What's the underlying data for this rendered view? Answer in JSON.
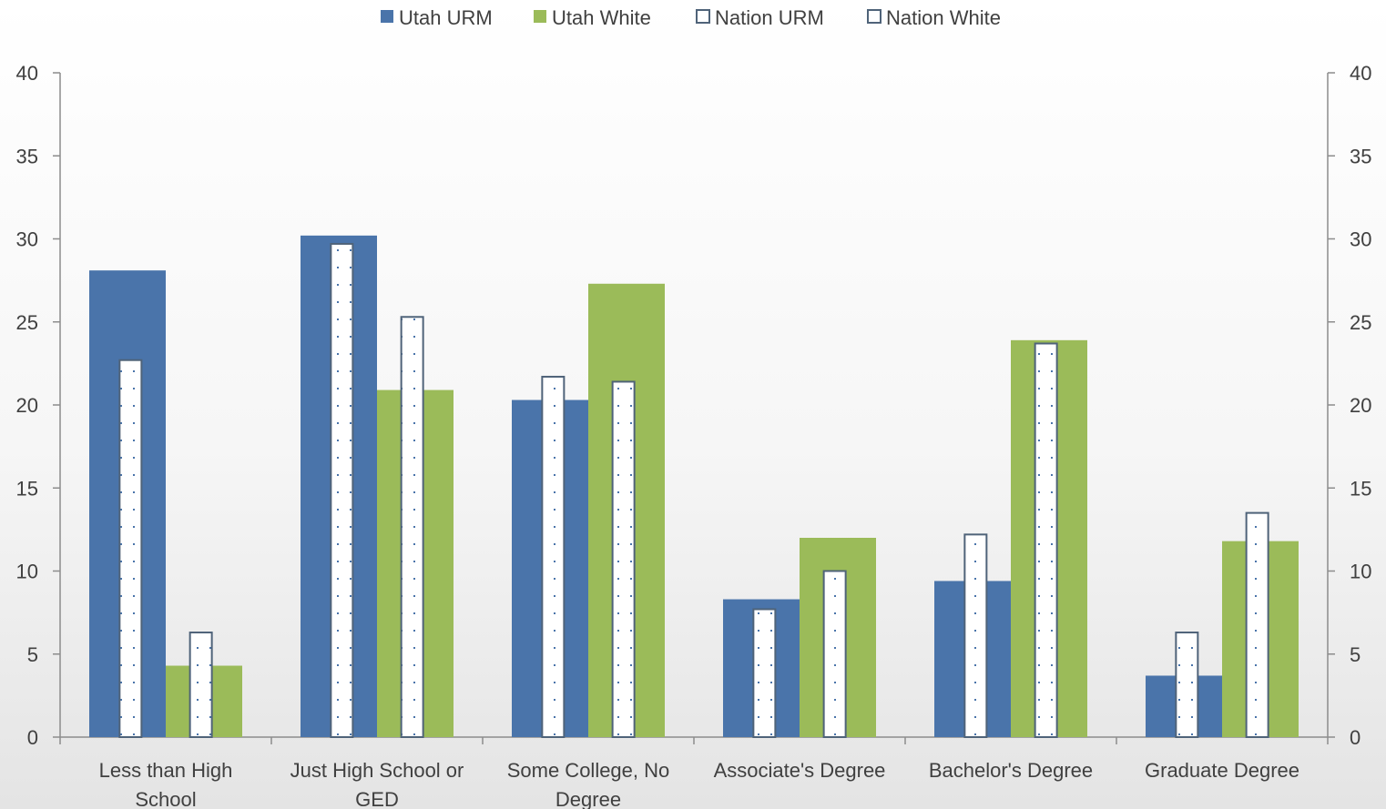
{
  "chart_data": {
    "type": "bar",
    "title": "",
    "xlabel": "",
    "ylabel": "",
    "ylim": [
      0,
      40
    ],
    "yticks": [
      0,
      5,
      10,
      15,
      20,
      25,
      30,
      35,
      40
    ],
    "secondary_y_axis": true,
    "legend_position": "top",
    "categories": [
      [
        "Less than High",
        "School"
      ],
      [
        "Just High School or",
        "GED"
      ],
      [
        "Some College,  No",
        "Degree"
      ],
      [
        "Associate's Degree"
      ],
      [
        "Bachelor's  Degree"
      ],
      [
        "Graduate Degree"
      ]
    ],
    "series": [
      {
        "name": "Utah URM",
        "values": [
          28.1,
          30.2,
          20.3,
          8.3,
          9.4,
          3.7
        ],
        "color": "#4a74aa",
        "style": "solid",
        "group": "utah"
      },
      {
        "name": "Utah White",
        "values": [
          4.3,
          20.9,
          27.3,
          12.0,
          23.9,
          11.8
        ],
        "color": "#9bbb59",
        "style": "solid",
        "group": "utah"
      },
      {
        "name": "Nation URM",
        "values": [
          22.7,
          29.7,
          21.7,
          7.7,
          12.2,
          6.3
        ],
        "color": "#ffffff",
        "border": "#4f6379",
        "dot": "#4a74aa",
        "style": "dotted",
        "group": "nation"
      },
      {
        "name": "Nation  White",
        "values": [
          6.3,
          25.3,
          21.4,
          10.0,
          23.7,
          13.5
        ],
        "color": "#ffffff",
        "border": "#4f6379",
        "dot": "#4a74aa",
        "style": "dotted",
        "group": "nation"
      }
    ]
  }
}
